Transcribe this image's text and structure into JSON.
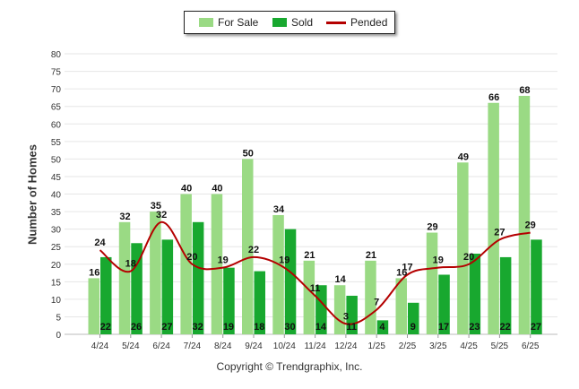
{
  "legend": {
    "for_sale": "For Sale",
    "sold": "Sold",
    "pended": "Pended"
  },
  "copyright": "Copyright © Trendgraphix, Inc.",
  "colors": {
    "for_sale": "#9ada84",
    "sold": "#18a82f",
    "pended": "#b40000",
    "grid": "#e6e6e6"
  },
  "chart_data": {
    "type": "bar",
    "title": "",
    "xlabel": "",
    "ylabel": "Number of Homes",
    "ylim": [
      0,
      80
    ],
    "yticks": [
      0,
      5,
      10,
      15,
      20,
      25,
      30,
      35,
      40,
      45,
      50,
      55,
      60,
      65,
      70,
      75,
      80
    ],
    "grid": true,
    "legend_position": "top-center",
    "categories": [
      "4/24",
      "5/24",
      "6/24",
      "7/24",
      "8/24",
      "9/24",
      "10/24",
      "11/24",
      "12/24",
      "1/25",
      "2/25",
      "3/25",
      "4/25",
      "5/25",
      "6/25"
    ],
    "series": [
      {
        "name": "For Sale",
        "type": "bar",
        "values": [
          16,
          32,
          35,
          40,
          40,
          50,
          34,
          21,
          14,
          21,
          16,
          29,
          49,
          66,
          68
        ]
      },
      {
        "name": "Sold",
        "type": "bar",
        "values": [
          22,
          26,
          27,
          32,
          19,
          18,
          30,
          14,
          11,
          4,
          9,
          17,
          23,
          22,
          27
        ]
      },
      {
        "name": "Pended",
        "type": "line",
        "values": [
          24,
          18,
          32,
          20,
          19,
          22,
          19,
          11,
          3,
          7,
          17,
          19,
          20,
          27,
          29
        ]
      }
    ]
  }
}
